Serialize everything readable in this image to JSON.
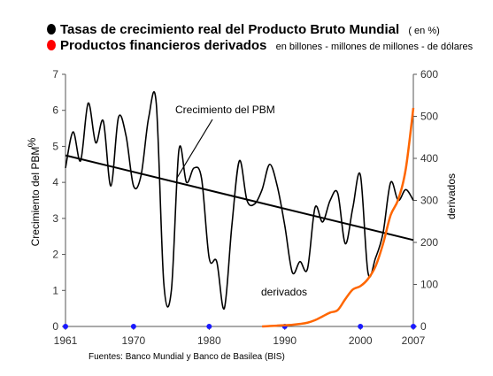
{
  "legend": [
    {
      "label": "Tasas de crecimiento real del Producto Bruto Mundial",
      "note": "( en %)",
      "color": "#000000"
    },
    {
      "label": "Productos financieros derivados",
      "note": "en billones - millones de millones - de dólares",
      "color": "#ff0000"
    }
  ],
  "source": "Fuentes: Banco Mundial y Banco de Basilea (BIS)",
  "chart_data": {
    "type": "line",
    "title": "",
    "x_ticks": [
      "1961",
      "1970",
      "1980",
      "1990",
      "2000",
      "2007"
    ],
    "xlim": [
      1961,
      2007
    ],
    "y_left": {
      "label": "Crecimiento del PBM",
      "unit": "%",
      "lim": [
        0,
        7
      ],
      "ticks": [
        "0",
        "1",
        "2",
        "3",
        "4",
        "5",
        "6",
        "7"
      ]
    },
    "y_right": {
      "label": "derivados",
      "lim": [
        0,
        600
      ],
      "ticks": [
        "0",
        "100",
        "200",
        "300",
        "400",
        "500",
        "600"
      ]
    },
    "annotations": [
      {
        "text": "Crecimiento del PBM",
        "target": "pbm"
      },
      {
        "text": "derivados",
        "target": "derivados"
      }
    ],
    "series": [
      {
        "id": "pbm",
        "axis": "left",
        "color": "#000000",
        "x": [
          1961,
          1962,
          1963,
          1964,
          1965,
          1966,
          1967,
          1968,
          1969,
          1970,
          1971,
          1972,
          1973,
          1974,
          1975,
          1976,
          1977,
          1978,
          1979,
          1980,
          1981,
          1982,
          1983,
          1984,
          1985,
          1986,
          1987,
          1988,
          1989,
          1990,
          1991,
          1992,
          1993,
          1994,
          1995,
          1996,
          1997,
          1998,
          1999,
          2000,
          2001,
          2002,
          2003,
          2004,
          2005,
          2006,
          2007
        ],
        "y": [
          4.4,
          5.4,
          4.6,
          6.2,
          5.1,
          5.7,
          3.9,
          5.8,
          5.3,
          3.9,
          4.2,
          5.8,
          6.2,
          1.2,
          1.0,
          4.9,
          4.0,
          4.4,
          4.1,
          1.9,
          1.8,
          0.5,
          2.8,
          4.6,
          3.5,
          3.4,
          3.8,
          4.5,
          3.9,
          2.8,
          1.5,
          1.8,
          1.6,
          3.3,
          2.9,
          3.5,
          3.7,
          2.3,
          3.3,
          4.2,
          1.5,
          1.9,
          2.6,
          4.0,
          3.5,
          3.8,
          3.5
        ]
      },
      {
        "id": "trend",
        "axis": "left",
        "color": "#000000",
        "x": [
          1961,
          2007
        ],
        "y": [
          4.75,
          2.4
        ]
      },
      {
        "id": "derivados",
        "axis": "right",
        "color": "#ff6600",
        "x": [
          1987,
          1988,
          1989,
          1990,
          1991,
          1992,
          1993,
          1994,
          1995,
          1996,
          1997,
          1998,
          1999,
          2000,
          2001,
          2002,
          2003,
          2004,
          2005,
          2006,
          2007
        ],
        "y": [
          0,
          1,
          2,
          3,
          4,
          6,
          9,
          15,
          24,
          33,
          39,
          65,
          88,
          96,
          113,
          143,
          197,
          265,
          302,
          375,
          520
        ]
      }
    ],
    "x_markers": [
      1961,
      1970,
      1980,
      1990,
      2000,
      2007
    ],
    "marker_color": "#1a1aff"
  }
}
